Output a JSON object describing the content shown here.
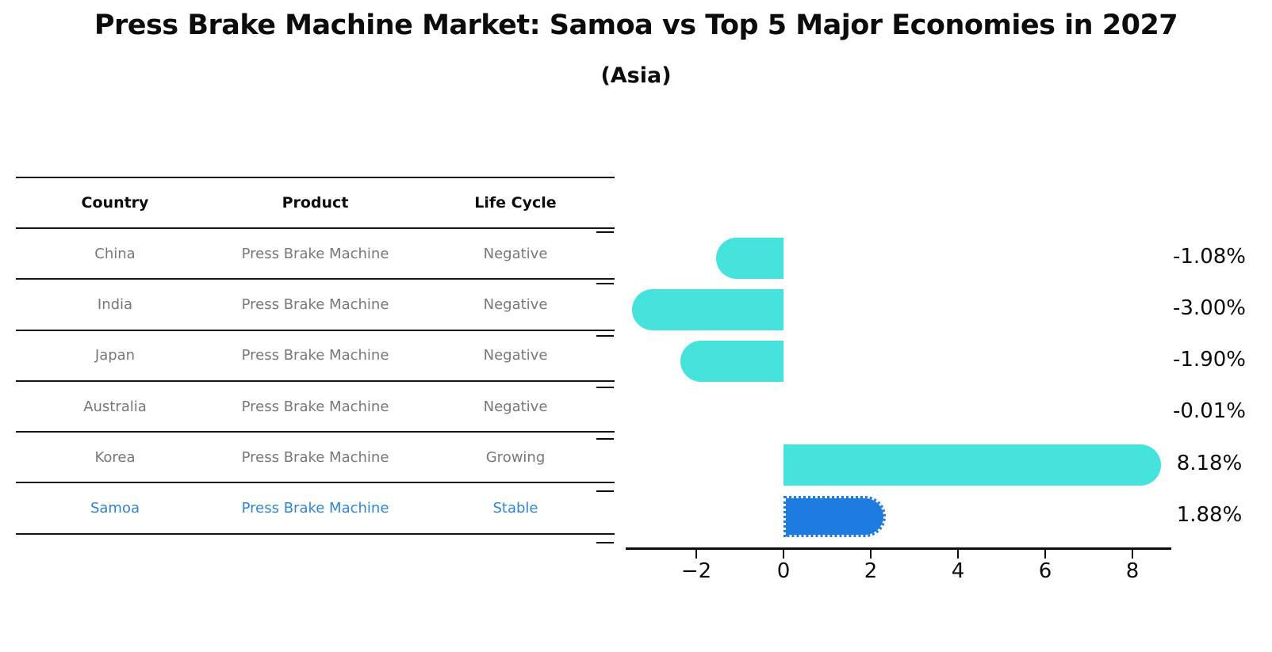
{
  "title": "Press Brake Machine Market: Samoa vs Top 5 Major Economies in 2027",
  "subtitle": "(Asia)",
  "table": {
    "headers": [
      "Country",
      "Product",
      "Life Cycle"
    ],
    "rows": [
      {
        "country": "China",
        "product": "Press Brake Machine",
        "life_cycle": "Negative",
        "highlight": false
      },
      {
        "country": "India",
        "product": "Press Brake Machine",
        "life_cycle": "Negative",
        "highlight": false
      },
      {
        "country": "Japan",
        "product": "Press Brake Machine",
        "life_cycle": "Negative",
        "highlight": false
      },
      {
        "country": "Australia",
        "product": "Press Brake Machine",
        "life_cycle": "Negative",
        "highlight": false
      },
      {
        "country": "Korea",
        "product": "Press Brake Machine",
        "life_cycle": "Growing",
        "highlight": false
      },
      {
        "country": "Samoa",
        "product": "Press Brake Machine",
        "life_cycle": "Stable",
        "highlight": true
      }
    ]
  },
  "chart_data": {
    "type": "bar",
    "orientation": "horizontal",
    "categories": [
      "China",
      "India",
      "Japan",
      "Australia",
      "Korea",
      "Samoa"
    ],
    "values": [
      -1.08,
      -3.0,
      -1.9,
      -0.01,
      8.18,
      1.88
    ],
    "value_labels": [
      "-1.08%",
      "-3.00%",
      "-1.90%",
      "-0.01%",
      "8.18%",
      "1.88%"
    ],
    "xticks": [
      -2,
      0,
      2,
      4,
      6,
      8
    ],
    "xtick_labels": [
      "−2",
      "0",
      "2",
      "4",
      "6",
      "8"
    ],
    "xlim": [
      -3.56,
      8.74
    ],
    "grid": false,
    "legend": "none",
    "bar_color": "#46e3dc",
    "highlight_index": 5,
    "highlight_color": "#1e7be0",
    "highlight_border_style": "dotted",
    "highlight_text_color": "#2e86d9"
  }
}
